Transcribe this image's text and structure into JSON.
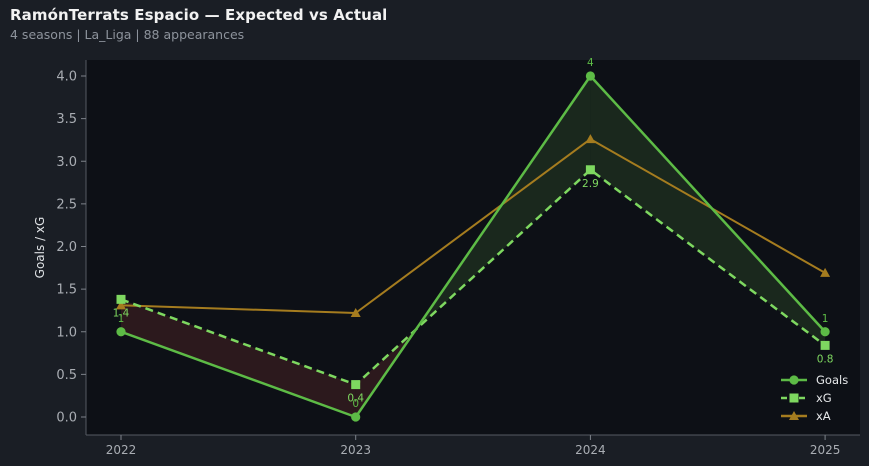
{
  "header": {
    "title": "RamónTerrats Espacio — Expected vs Actual",
    "subtitle": "4 seasons | La_Liga | 88 appearances"
  },
  "colors": {
    "background": "#1a1e25",
    "plot_background": "#0d1016",
    "goals": "#5dbb46",
    "xg": "#7ed860",
    "xa": "#a57c1f",
    "overperform_fill": "#1b2a1e",
    "underperform_fill": "#2e1a1e",
    "axis_text": "#a9adb3"
  },
  "chart_data": {
    "type": "line",
    "title": "RamónTerrats Espacio — Expected vs Actual",
    "xlabel": "",
    "ylabel": "Goals / xG",
    "categories": [
      "2022",
      "2023",
      "2024",
      "2025"
    ],
    "ylim": [
      -0.2,
      4.2
    ],
    "yticks": [
      "0.0",
      "0.5",
      "1.0",
      "1.5",
      "2.0",
      "2.5",
      "3.0",
      "3.5",
      "4.0"
    ],
    "grid": false,
    "legend_position": "bottom-right",
    "series": [
      {
        "name": "Goals",
        "values": [
          1,
          0,
          4,
          1
        ],
        "labels": [
          "1",
          "0",
          "4",
          "1"
        ],
        "marker": "circle",
        "style": "solid"
      },
      {
        "name": "xG",
        "values": [
          1.38,
          0.38,
          2.9,
          0.84
        ],
        "labels": [
          "1.4",
          "0.4",
          "2.9",
          "0.8"
        ],
        "marker": "square",
        "style": "dashed"
      },
      {
        "name": "xA",
        "values": [
          1.31,
          1.22,
          3.26,
          1.69
        ],
        "marker": "triangle",
        "style": "solid"
      }
    ]
  }
}
